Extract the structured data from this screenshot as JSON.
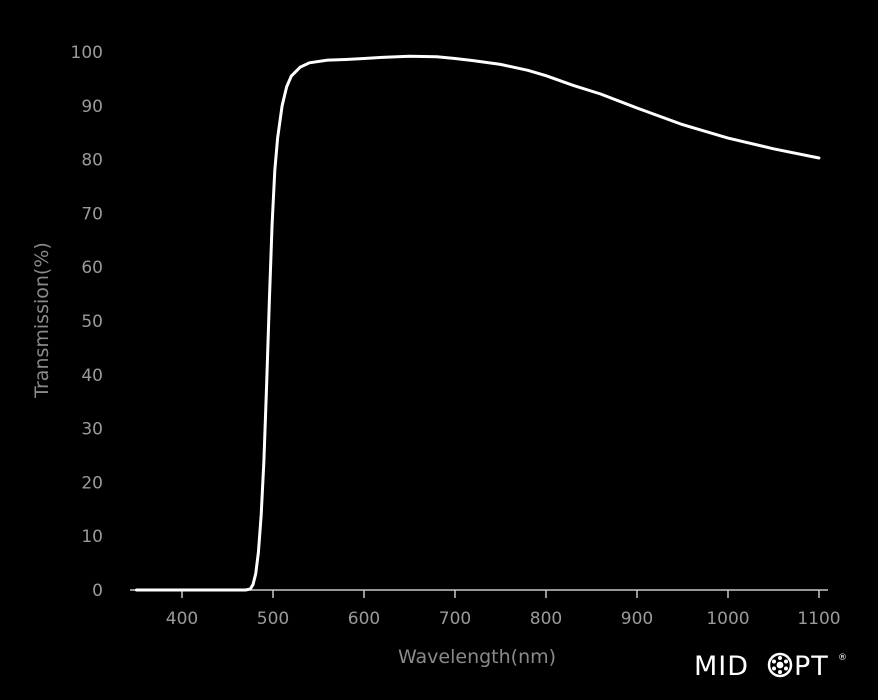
{
  "chart_data": {
    "type": "line",
    "title": "",
    "xlabel": "Wavelength(nm)",
    "ylabel": "Transmission(%)",
    "xlim": [
      350,
      1100
    ],
    "ylim": [
      0,
      100
    ],
    "x_ticks": [
      400,
      500,
      600,
      700,
      800,
      900,
      1000,
      1100
    ],
    "y_ticks": [
      0,
      10,
      20,
      30,
      40,
      50,
      60,
      70,
      80,
      90,
      100
    ],
    "grid": false,
    "colors": {
      "background": "#000000",
      "line": "#ffffff",
      "axis": "#c8c8c8",
      "labels": "#9a9a9a"
    },
    "series": [
      {
        "x": [
          350,
          400,
          450,
          470,
          475,
          478,
          481,
          484,
          487,
          490,
          493,
          496,
          499,
          502,
          505,
          510,
          515,
          520,
          530,
          540,
          560,
          580,
          600,
          620,
          650,
          680,
          700,
          720,
          750,
          780,
          800,
          830,
          860,
          900,
          950,
          1000,
          1050,
          1100
        ],
        "y": [
          0,
          0,
          0,
          0,
          0.2,
          1,
          3,
          7,
          14,
          24,
          38,
          54,
          68,
          78,
          84,
          90,
          93.5,
          95.5,
          97.2,
          98,
          98.5,
          98.6,
          98.8,
          99,
          99.2,
          99.1,
          98.8,
          98.4,
          97.7,
          96.6,
          95.6,
          93.8,
          92.2,
          89.6,
          86.5,
          84,
          82,
          80.3
        ]
      }
    ]
  },
  "logo": {
    "text_before": "MID",
    "text_after": "PT",
    "mark": "®"
  }
}
